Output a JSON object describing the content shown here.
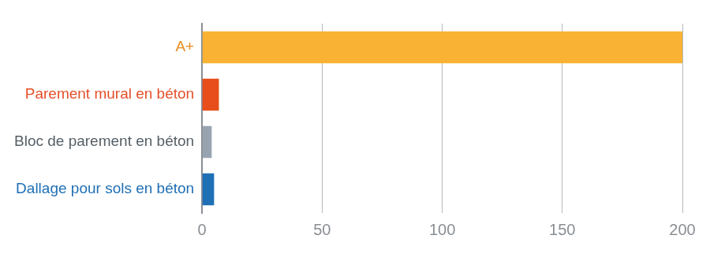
{
  "chart_data": {
    "type": "bar",
    "orientation": "horizontal",
    "categories": [
      "A+",
      "Parement mural en béton",
      "Bloc de parement en béton",
      "Dallage pour sols en béton"
    ],
    "values": [
      200,
      7,
      4,
      5
    ],
    "colors": [
      "#f9b233",
      "#e84e1b",
      "#97a4b0",
      "#1f6fb5"
    ],
    "xlim": [
      0,
      200
    ],
    "xticks": [
      0,
      50,
      100,
      150,
      200
    ],
    "grid": true
  }
}
